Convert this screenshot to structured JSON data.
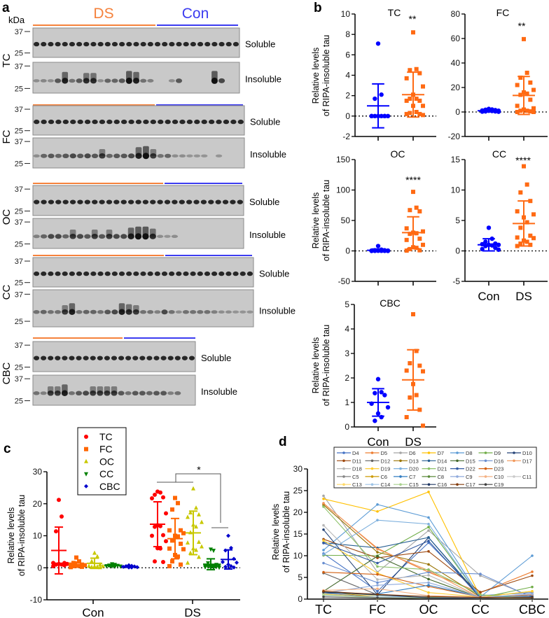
{
  "panel_letters": {
    "a": "a",
    "b": "b",
    "c": "c",
    "d": "d"
  },
  "panel_a": {
    "unit": "kDa",
    "group_labels": {
      "ds": "DS",
      "con": "Con"
    },
    "colors": {
      "ds": "#f5823c",
      "con": "#3c3cf0"
    },
    "markers": [
      "37",
      "25"
    ],
    "fraction_labels": {
      "soluble": "Soluble",
      "insoluble": "Insoluble"
    },
    "regions": [
      "TC",
      "FC",
      "OC",
      "CC",
      "CBC"
    ]
  },
  "chart_data": [
    {
      "type": "scatter",
      "panel": "b",
      "title": "TC",
      "significance": "**",
      "ylabel": [
        "Relative levels",
        "of RIPA-insoluble tau"
      ],
      "ylim": [
        -2,
        10
      ],
      "yticks": [
        10,
        8,
        6,
        4,
        2,
        0,
        -2
      ],
      "categories": [
        "Con",
        "DS"
      ],
      "show_categories": false,
      "series": [
        {
          "name": "Con",
          "color": "#0000ff",
          "marker": "circle",
          "values": [
            7.1,
            2.1,
            1.7,
            0,
            0,
            0,
            0,
            0,
            0,
            0,
            0
          ],
          "mean": 1.0,
          "sd": 2.15
        },
        {
          "name": "DS",
          "color": "#ff6a13",
          "marker": "square",
          "values": [
            8.2,
            4.6,
            4.5,
            4.2,
            3.7,
            2.9,
            2.1,
            1.7,
            1.7,
            1.5,
            1.5,
            1.0,
            1.0,
            0.4,
            0.3,
            0.2,
            0.2,
            0.1
          ],
          "mean": 2.1,
          "sd": 2.2
        }
      ]
    },
    {
      "type": "scatter",
      "panel": "b",
      "title": "FC",
      "significance": "**",
      "ylabel": [],
      "ylim": [
        -20,
        80
      ],
      "yticks": [
        80,
        60,
        40,
        20,
        0,
        -20
      ],
      "categories": [
        "Con",
        "DS"
      ],
      "show_categories": false,
      "series": [
        {
          "name": "Con",
          "color": "#0000ff",
          "marker": "circle",
          "values": [
            2.5,
            2,
            1.8,
            1.5,
            1.2,
            1,
            1,
            0.8,
            0.5,
            0.5,
            0.3,
            0.2
          ],
          "mean": 1.0,
          "sd": 0.8
        },
        {
          "name": "DS",
          "color": "#ff6a13",
          "marker": "square",
          "values": [
            59.5,
            32,
            28,
            24,
            22,
            18,
            16,
            15,
            14,
            10,
            5,
            3,
            2,
            1,
            1,
            0.5,
            0,
            0
          ],
          "mean": 13.5,
          "sd": 15.5
        }
      ]
    },
    {
      "type": "scatter",
      "panel": "b",
      "title": "OC",
      "significance": "****",
      "ylabel": [
        "Relative levels",
        "of RIPA-insoluble tau"
      ],
      "ylim": [
        -50,
        150
      ],
      "yticks": [
        150,
        100,
        50,
        0,
        -50
      ],
      "categories": [
        "Con",
        "DS"
      ],
      "show_categories": false,
      "series": [
        {
          "name": "Con",
          "color": "#0000ff",
          "marker": "circle",
          "values": [
            8,
            2,
            1,
            1,
            0.5,
            0.5,
            0.3,
            0.2,
            0.1,
            0.1,
            0,
            0
          ],
          "mean": 1.0,
          "sd": 2.2
        },
        {
          "name": "DS",
          "color": "#ff6a13",
          "marker": "square",
          "values": [
            97,
            71,
            67,
            65,
            37,
            32,
            30,
            29,
            28,
            20,
            18,
            10,
            6,
            5,
            3,
            1,
            0.5
          ],
          "mean": 30,
          "sd": 26
        }
      ]
    },
    {
      "type": "scatter",
      "panel": "b",
      "title": "CC",
      "significance": "****",
      "ylabel": [],
      "ylim": [
        -5,
        15
      ],
      "yticks": [
        15,
        10,
        5,
        0,
        -5
      ],
      "categories": [
        "Con",
        "DS"
      ],
      "show_categories": true,
      "series": [
        {
          "name": "Con",
          "color": "#0000ff",
          "marker": "circle",
          "values": [
            3.8,
            2.0,
            1.5,
            1.2,
            1.1,
            1.0,
            1.0,
            0.9,
            0.8,
            0.5,
            0.3,
            0.2
          ],
          "mean": 1.0,
          "sd": 1.0
        },
        {
          "name": "DS",
          "color": "#ff6a13",
          "marker": "square",
          "values": [
            13.9,
            10.9,
            9.6,
            8.2,
            6.5,
            6.0,
            5.5,
            4.7,
            3.8,
            2.5,
            2.2,
            2.1,
            1.7,
            1.5,
            1.2,
            1.0,
            0.8
          ],
          "mean": 4.5,
          "sd": 3.7
        }
      ]
    },
    {
      "type": "scatter",
      "panel": "b",
      "title": "CBC",
      "significance": "",
      "ylabel": [
        "Relative levels",
        "of RIPA-insoluble tau"
      ],
      "ylim": [
        0,
        5
      ],
      "yticks": [
        5,
        4,
        3,
        2,
        1,
        0
      ],
      "categories": [
        "Con",
        "DS"
      ],
      "show_categories": true,
      "series": [
        {
          "name": "Con",
          "color": "#0000ff",
          "marker": "circle",
          "values": [
            1.95,
            1.42,
            1.38,
            1.3,
            0.95,
            0.8,
            0.55,
            0.4,
            0.25
          ],
          "mean": 1.0,
          "sd": 0.56
        },
        {
          "name": "DS",
          "color": "#ff6a13",
          "marker": "square",
          "values": [
            4.6,
            3.1,
            2.6,
            2.5,
            2.3,
            2.27,
            1.75,
            1.3,
            1.2,
            0.7,
            0.4,
            0.05
          ],
          "mean": 1.92,
          "sd": 1.23
        }
      ]
    },
    {
      "type": "scatter",
      "panel": "c",
      "ylabel": [
        "Relative levels",
        "of RIPA-insoluble tau"
      ],
      "ylim": [
        -10,
        30
      ],
      "yticks": [
        30,
        20,
        10,
        0,
        -10
      ],
      "categories": [
        "Con",
        "DS"
      ],
      "significance": "*",
      "legend": {
        "placement": "top-left",
        "entries": [
          "TC",
          "FC",
          "OC",
          "CC",
          "CBC"
        ]
      },
      "series": [
        {
          "name": "TC",
          "color": "#ff0000",
          "marker": "circle",
          "Con": {
            "values": [
              21.2,
              16,
              11.4,
              1.5,
              1.5,
              1.2,
              1.2,
              1.0,
              1.0,
              0.8,
              0.5
            ],
            "mean": 5.4,
            "sd": 7.3
          },
          "DS": {
            "values": [
              23.8,
              23.5,
              22.8,
              22,
              21.7,
              17,
              13.3,
              13,
              12.8,
              10.2,
              10,
              8.3,
              6.1,
              6,
              2,
              1.8
            ],
            "mean": 13.6,
            "sd": 7.0
          }
        },
        {
          "name": "FC",
          "color": "#ff6600",
          "marker": "square",
          "Con": {
            "values": [
              3.2,
              2,
              1.5,
              1,
              1,
              0.8,
              0.6,
              0.6,
              0.5,
              0.3,
              0.2
            ],
            "mean": 1.0,
            "sd": 0.8
          },
          "DS": {
            "values": [
              21.8,
              20.2,
              18.2,
              11.7,
              11.7,
              10.8,
              10,
              9.8,
              8.5,
              7.5,
              6,
              5.8,
              4,
              3.5,
              2,
              1,
              0.5
            ],
            "mean": 9.1,
            "sd": 6.3
          }
        },
        {
          "name": "OC",
          "color": "#c8c800",
          "marker": "triangle",
          "Con": {
            "values": [
              4.6,
              3.5,
              2,
              1,
              0.5,
              0.5,
              0.4,
              0.3,
              0.2,
              0.1
            ],
            "mean": 1.4,
            "sd": 1.6
          },
          "DS": {
            "values": [
              24.7,
              18.7,
              17.2,
              16.6,
              15.8,
              14.2,
              13.4,
              12.8,
              11,
              8,
              7.8,
              6.6,
              6,
              5.5,
              4.6,
              3.3,
              1.5
            ],
            "mean": 10.9,
            "sd": 6.8
          }
        },
        {
          "name": "CC",
          "color": "#008000",
          "marker": "triangle-down",
          "Con": {
            "values": [
              1.2,
              1,
              0.8,
              0.7,
              0.6,
              0.5,
              0.5,
              0.4
            ],
            "mean": 0.7,
            "sd": 0.3
          },
          "DS": {
            "values": [
              5.8,
              5.4,
              1.5,
              1,
              0.8,
              0.8,
              0.5,
              0.5,
              0.4,
              0.3,
              0.2,
              0.1,
              0.1,
              0
            ],
            "mean": 1.1,
            "sd": 1.7
          }
        },
        {
          "name": "CBC",
          "color": "#0000cc",
          "marker": "diamond",
          "Con": {
            "values": [
              0.8,
              0.6,
              0.5,
              0.4,
              0.3,
              0.2,
              0.1,
              0.1
            ],
            "mean": 0.4,
            "sd": 0.25
          },
          "DS": {
            "values": [
              10,
              6.2,
              5.4,
              2.8,
              1.8,
              1.6,
              1,
              0.5,
              0.3,
              0.1
            ],
            "mean": 2.6,
            "sd": 3.0
          }
        }
      ]
    },
    {
      "type": "line",
      "panel": "d",
      "ylabel": [
        "Relative levels",
        "of RIPA-insoluble tau"
      ],
      "ylim": [
        0,
        30
      ],
      "yticks": [
        30,
        25,
        20,
        15,
        10,
        5,
        0
      ],
      "categories": [
        "TC",
        "FC",
        "OC",
        "CC",
        "CBC"
      ],
      "legend": {
        "placement": "top"
      },
      "series": [
        {
          "name": "D4",
          "color": "#4472c4",
          "values": [
            10.5,
            1.8,
            13,
            0.8,
            1.5
          ]
        },
        {
          "name": "D5",
          "color": "#ed7d31",
          "values": [
            22,
            11.7,
            6.2,
            1.5,
            6.3
          ]
        },
        {
          "name": "D6",
          "color": "#a5a5a5",
          "values": [
            23.8,
            6.2,
            15.8,
            5.4,
            0.5
          ]
        },
        {
          "name": "D7",
          "color": "#ffc000",
          "values": [
            23.1,
            20.2,
            24.7,
            0.5,
            1.8
          ]
        },
        {
          "name": "D8",
          "color": "#5b9bd5",
          "values": [
            11.3,
            21.8,
            18.8,
            0.5,
            10
          ]
        },
        {
          "name": "D9",
          "color": "#70ad47",
          "values": [
            10.1,
            10,
            16.6,
            0.3,
            2.8
          ]
        },
        {
          "name": "D10",
          "color": "#264478",
          "values": [
            16,
            1,
            14.2,
            0.3,
            1
          ]
        },
        {
          "name": "D11",
          "color": "#9e480e",
          "values": [
            13.8,
            9.5,
            11,
            1.6,
            5.4
          ]
        },
        {
          "name": "D12",
          "color": "#636363",
          "values": [
            6,
            1,
            0.5,
            0.2,
            0.2
          ]
        },
        {
          "name": "D13",
          "color": "#997300",
          "values": [
            21.7,
            10.8,
            8,
            0.5,
            0.5
          ]
        },
        {
          "name": "D14",
          "color": "#255e91",
          "values": [
            13,
            11.8,
            14.2,
            0.5,
            0.8
          ]
        },
        {
          "name": "D15",
          "color": "#43682b",
          "values": [
            1.8,
            9.9,
            4.6,
            0.3,
            0.5
          ]
        },
        {
          "name": "D16",
          "color": "#698ed0",
          "values": [
            8.3,
            3.8,
            6.2,
            5.8,
            0.4
          ]
        },
        {
          "name": "D17",
          "color": "#f1975a",
          "values": [
            22.1,
            11.5,
            6.6,
            0.3,
            1
          ]
        },
        {
          "name": "D18",
          "color": "#b7b7b7",
          "values": [
            17,
            4.5,
            5.5,
            0.3,
            0.3
          ]
        },
        {
          "name": "D19",
          "color": "#ffcd33",
          "values": [
            13.5,
            6,
            1.5,
            0.5,
            1.8
          ]
        },
        {
          "name": "D20",
          "color": "#7cafdd",
          "values": [
            10.3,
            18.2,
            17.3,
            0.3,
            0.5
          ]
        },
        {
          "name": "D21",
          "color": "#8cc168",
          "values": [
            21.3,
            7.5,
            6.8,
            1,
            0.3
          ]
        },
        {
          "name": "D22",
          "color": "#335aa1",
          "values": [
            12.9,
            8.3,
            13.4,
            0.3,
            0.5
          ]
        },
        {
          "name": "D23",
          "color": "#d26012",
          "values": [
            6.2,
            5.7,
            2.9,
            0.5,
            0.3
          ]
        },
        {
          "name": "C5",
          "color": "#848484",
          "values": [
            1.3,
            0.5,
            0.3,
            0.1,
            0.2
          ]
        },
        {
          "name": "C6",
          "color": "#cc9a00",
          "values": [
            1.7,
            0.5,
            0.5,
            0.2,
            0.1
          ]
        },
        {
          "name": "C7",
          "color": "#327dc2",
          "values": [
            1.4,
            1.2,
            3.2,
            0.5,
            0.5
          ]
        },
        {
          "name": "C8",
          "color": "#5a8a39",
          "values": [
            1.7,
            0.9,
            0.5,
            0.3,
            0.2
          ]
        },
        {
          "name": "C9",
          "color": "#8faadc",
          "values": [
            1.4,
            3.2,
            3.8,
            0.4,
            1.2
          ]
        },
        {
          "name": "C10",
          "color": "#f4b183",
          "values": [
            2,
            2.4,
            0.8,
            0.5,
            0.3
          ]
        },
        {
          "name": "C11",
          "color": "#c9c9c9",
          "values": [
            0.8,
            0.5,
            0.3,
            0.2,
            0.1
          ]
        },
        {
          "name": "C13",
          "color": "#ffd966",
          "values": [
            1.2,
            0.2,
            0.2,
            0.1,
            0.1
          ]
        },
        {
          "name": "C14",
          "color": "#9dc3e6",
          "values": [
            0.9,
            0.5,
            0.6,
            0.3,
            0.5
          ]
        },
        {
          "name": "C15",
          "color": "#a9d18e",
          "values": [
            1,
            0.3,
            0.3,
            0.2,
            0.2
          ]
        },
        {
          "name": "C16",
          "color": "#203864",
          "values": [
            1.6,
            1,
            0.3,
            0.2,
            0.5
          ]
        },
        {
          "name": "C17",
          "color": "#843c0c",
          "values": [
            1.8,
            1.1,
            0.6,
            0.4,
            0.3
          ]
        },
        {
          "name": "C19",
          "color": "#404040",
          "values": [
            0.5,
            0.3,
            0.1,
            0.1,
            0.1
          ]
        }
      ]
    }
  ]
}
